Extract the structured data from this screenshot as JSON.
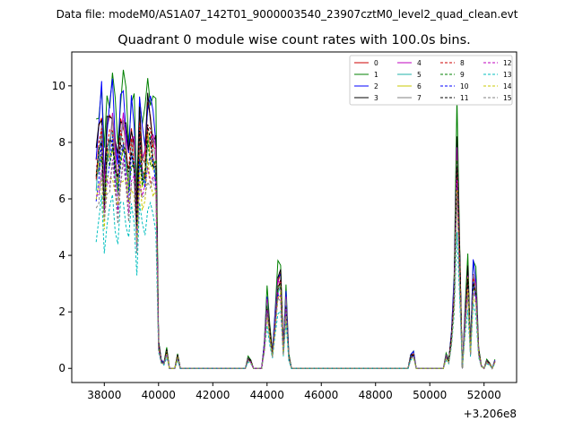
{
  "suptitle": "Data file: modeM0/AS1A07_142T01_9000003540_23907cztM0_level2_quad_clean.evt",
  "chart_data": {
    "type": "line",
    "title": "Quadrant 0 module wise count rates with 100.0s bins.",
    "xlabel": "",
    "ylabel": "",
    "x_offset_label": "+3.206e8",
    "xlim": [
      36800,
      53200
    ],
    "ylim": [
      -0.5,
      11.2
    ],
    "x_ticks": [
      38000,
      40000,
      42000,
      44000,
      46000,
      48000,
      50000,
      52000
    ],
    "x_tick_labels": [
      "38000",
      "40000",
      "42000",
      "44000",
      "46000",
      "48000",
      "50000",
      "52000"
    ],
    "y_ticks": [
      0,
      2,
      4,
      6,
      8,
      10
    ],
    "y_tick_labels": [
      "0",
      "2",
      "4",
      "6",
      "8",
      "10"
    ],
    "grid": false,
    "legend_position": "top-right",
    "legend_ncol": 4,
    "x_units": "seconds offset from 3.206e8",
    "x": [
      37700,
      37800,
      37900,
      38000,
      38100,
      38200,
      38300,
      38400,
      38500,
      38600,
      38700,
      38800,
      38900,
      39000,
      39100,
      39200,
      39300,
      39400,
      39500,
      39600,
      39700,
      39800,
      39900,
      40000,
      40100,
      40200,
      40300,
      40400,
      40500,
      40600,
      40700,
      40800,
      43200,
      43300,
      43400,
      43500,
      43600,
      43700,
      43800,
      43900,
      44000,
      44100,
      44200,
      44300,
      44400,
      44500,
      44600,
      44700,
      44800,
      44900,
      45000,
      45100,
      49200,
      49300,
      49400,
      49500,
      49600,
      49700,
      49800,
      49900,
      50000,
      50100,
      50200,
      50300,
      50400,
      50500,
      50600,
      50700,
      50800,
      50900,
      51000,
      51100,
      51200,
      51300,
      51400,
      51500,
      51600,
      51700,
      51800,
      51900,
      52000,
      52100,
      52200,
      52300,
      52400
    ],
    "base_profile": [
      0.82,
      0.9,
      1.0,
      0.72,
      0.92,
      0.95,
      1.02,
      0.88,
      0.78,
      0.96,
      1.0,
      0.92,
      0.8,
      0.95,
      0.9,
      0.6,
      0.98,
      0.85,
      0.85,
      1.0,
      0.96,
      0.92,
      0.88,
      0.1,
      0.03,
      0.02,
      0.07,
      0.0,
      0.0,
      0.0,
      0.05,
      0.0,
      0.0,
      0.04,
      0.03,
      0.0,
      0.0,
      0.0,
      0.0,
      0.09,
      0.27,
      0.15,
      0.06,
      0.2,
      0.35,
      0.36,
      0.07,
      0.28,
      0.05,
      0.0,
      0.0,
      0.0,
      0.0,
      0.05,
      0.06,
      0.0,
      0.0,
      0.0,
      0.0,
      0.0,
      0.0,
      0.0,
      0.0,
      0.0,
      0.0,
      0.0,
      0.05,
      0.03,
      0.13,
      0.32,
      0.88,
      0.44,
      0.0,
      0.2,
      0.38,
      0.07,
      0.38,
      0.33,
      0.07,
      0.01,
      0.0,
      0.03,
      0.02,
      0.0,
      0.03
    ],
    "series": [
      {
        "name": "0",
        "color": "#cc0000",
        "style": "solid",
        "scale": 9.0
      },
      {
        "name": "1",
        "color": "#008000",
        "style": "solid",
        "scale": 10.3
      },
      {
        "name": "2",
        "color": "#0000ff",
        "style": "solid",
        "scale": 9.6
      },
      {
        "name": "3",
        "color": "#000000",
        "style": "solid",
        "scale": 9.2
      },
      {
        "name": "4",
        "color": "#bf00bf",
        "style": "solid",
        "scale": 8.6
      },
      {
        "name": "5",
        "color": "#20b2aa",
        "style": "solid",
        "scale": 8.1
      },
      {
        "name": "6",
        "color": "#c8c800",
        "style": "solid",
        "scale": 8.0
      },
      {
        "name": "7",
        "color": "#808080",
        "style": "solid",
        "scale": 8.3
      },
      {
        "name": "8",
        "color": "#cc0000",
        "style": "dashed",
        "scale": 8.4
      },
      {
        "name": "9",
        "color": "#008000",
        "style": "dashed",
        "scale": 7.9
      },
      {
        "name": "10",
        "color": "#0000ff",
        "style": "dashed",
        "scale": 7.6
      },
      {
        "name": "11",
        "color": "#000000",
        "style": "dashed",
        "scale": 8.2
      },
      {
        "name": "12",
        "color": "#bf00bf",
        "style": "dashed",
        "scale": 7.2
      },
      {
        "name": "13",
        "color": "#00bfbf",
        "style": "dashed",
        "scale": 5.8
      },
      {
        "name": "14",
        "color": "#c8c800",
        "style": "dashed",
        "scale": 7.0
      },
      {
        "name": "15",
        "color": "#808080",
        "style": "dashed",
        "scale": 6.9
      }
    ]
  }
}
